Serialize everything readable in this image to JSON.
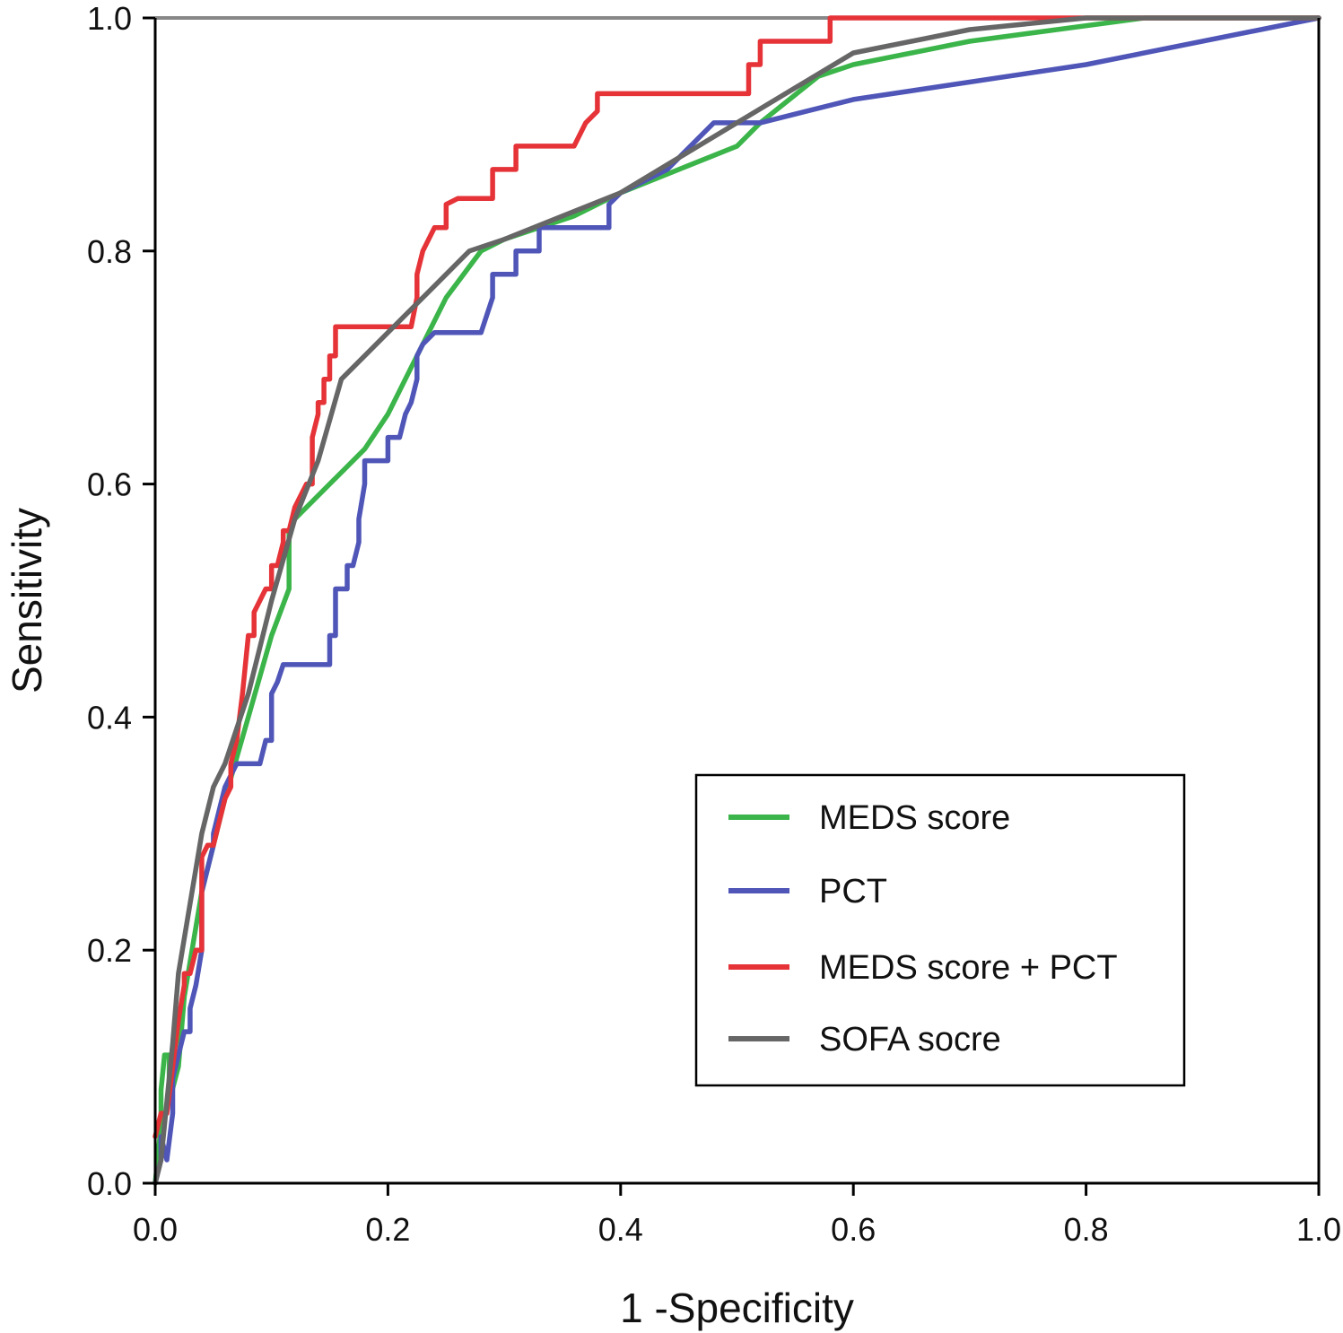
{
  "chart_data": {
    "type": "line",
    "title": "",
    "xlabel": "1 -Specificity",
    "ylabel": "Sensitivity",
    "xlim": [
      0,
      1
    ],
    "ylim": [
      0,
      1
    ],
    "xticks": [
      "0.0",
      "0.2",
      "0.4",
      "0.6",
      "0.8",
      "1.0"
    ],
    "yticks": [
      "0.0",
      "0.2",
      "0.4",
      "0.6",
      "0.8",
      "1.0"
    ],
    "legend_position": "bottom-right",
    "reference_line": {
      "x": [
        0,
        1
      ],
      "y": [
        1,
        1
      ],
      "color": "#888888"
    },
    "series": [
      {
        "name": "MEDS score",
        "color": "#3bb54a",
        "x": [
          0,
          0.005,
          0.005,
          0.008,
          0.012,
          0.012,
          0.02,
          0.025,
          0.04,
          0.06,
          0.08,
          0.1,
          0.115,
          0.115,
          0.12,
          0.15,
          0.18,
          0.2,
          0.22,
          0.25,
          0.28,
          0.3,
          0.33,
          0.36,
          0.4,
          0.45,
          0.5,
          0.52,
          0.57,
          0.6,
          0.7,
          0.85,
          1
        ],
        "y": [
          0,
          0.05,
          0.08,
          0.11,
          0.11,
          0.07,
          0.1,
          0.16,
          0.25,
          0.33,
          0.4,
          0.47,
          0.51,
          0.56,
          0.57,
          0.6,
          0.63,
          0.66,
          0.7,
          0.76,
          0.8,
          0.81,
          0.82,
          0.83,
          0.85,
          0.87,
          0.89,
          0.91,
          0.95,
          0.96,
          0.98,
          1.0,
          1.0
        ]
      },
      {
        "name": "PCT",
        "color": "#4f56b8",
        "x": [
          0,
          0.005,
          0.005,
          0.01,
          0.015,
          0.015,
          0.02,
          0.025,
          0.03,
          0.03,
          0.035,
          0.04,
          0.04,
          0.045,
          0.05,
          0.05,
          0.055,
          0.06,
          0.07,
          0.08,
          0.09,
          0.095,
          0.1,
          0.1,
          0.105,
          0.11,
          0.13,
          0.15,
          0.15,
          0.155,
          0.155,
          0.16,
          0.165,
          0.165,
          0.17,
          0.175,
          0.175,
          0.18,
          0.18,
          0.19,
          0.2,
          0.2,
          0.21,
          0.215,
          0.22,
          0.225,
          0.225,
          0.23,
          0.24,
          0.25,
          0.28,
          0.29,
          0.29,
          0.3,
          0.31,
          0.31,
          0.32,
          0.33,
          0.33,
          0.35,
          0.39,
          0.39,
          0.4,
          0.44,
          0.48,
          0.52,
          0.6,
          0.8,
          1
        ],
        "y": [
          0,
          0.02,
          0.04,
          0.02,
          0.06,
          0.09,
          0.11,
          0.13,
          0.13,
          0.15,
          0.17,
          0.2,
          0.25,
          0.27,
          0.29,
          0.3,
          0.32,
          0.34,
          0.36,
          0.36,
          0.36,
          0.38,
          0.38,
          0.42,
          0.43,
          0.445,
          0.445,
          0.445,
          0.47,
          0.47,
          0.51,
          0.51,
          0.51,
          0.53,
          0.53,
          0.55,
          0.57,
          0.6,
          0.62,
          0.62,
          0.62,
          0.64,
          0.64,
          0.66,
          0.67,
          0.69,
          0.71,
          0.72,
          0.73,
          0.73,
          0.73,
          0.76,
          0.78,
          0.78,
          0.78,
          0.8,
          0.8,
          0.8,
          0.82,
          0.82,
          0.82,
          0.84,
          0.85,
          0.87,
          0.91,
          0.91,
          0.93,
          0.96,
          1.0
        ]
      },
      {
        "name": "MEDS score + PCT",
        "color": "#e53338",
        "x": [
          0,
          0.005,
          0.01,
          0.015,
          0.02,
          0.025,
          0.025,
          0.03,
          0.035,
          0.04,
          0.04,
          0.045,
          0.05,
          0.055,
          0.06,
          0.065,
          0.065,
          0.07,
          0.075,
          0.08,
          0.085,
          0.085,
          0.09,
          0.095,
          0.1,
          0.1,
          0.105,
          0.11,
          0.11,
          0.115,
          0.12,
          0.12,
          0.13,
          0.13,
          0.135,
          0.135,
          0.14,
          0.14,
          0.145,
          0.145,
          0.15,
          0.15,
          0.155,
          0.155,
          0.16,
          0.22,
          0.225,
          0.225,
          0.23,
          0.23,
          0.24,
          0.24,
          0.25,
          0.25,
          0.26,
          0.26,
          0.29,
          0.29,
          0.3,
          0.3,
          0.31,
          0.31,
          0.32,
          0.36,
          0.37,
          0.37,
          0.38,
          0.38,
          0.5,
          0.51,
          0.51,
          0.52,
          0.52,
          0.57,
          0.58,
          0.58,
          0.6,
          1
        ],
        "y": [
          0.04,
          0.06,
          0.06,
          0.1,
          0.14,
          0.17,
          0.18,
          0.18,
          0.2,
          0.2,
          0.28,
          0.29,
          0.29,
          0.31,
          0.33,
          0.34,
          0.36,
          0.38,
          0.42,
          0.47,
          0.47,
          0.49,
          0.5,
          0.51,
          0.51,
          0.53,
          0.53,
          0.55,
          0.56,
          0.56,
          0.58,
          0.58,
          0.6,
          0.6,
          0.6,
          0.64,
          0.66,
          0.67,
          0.67,
          0.69,
          0.69,
          0.71,
          0.71,
          0.735,
          0.735,
          0.735,
          0.76,
          0.78,
          0.8,
          0.8,
          0.82,
          0.82,
          0.82,
          0.84,
          0.845,
          0.845,
          0.845,
          0.87,
          0.87,
          0.87,
          0.87,
          0.89,
          0.89,
          0.89,
          0.91,
          0.91,
          0.92,
          0.935,
          0.935,
          0.935,
          0.96,
          0.96,
          0.98,
          0.98,
          0.98,
          1.0,
          1.0,
          1.0
        ]
      },
      {
        "name": "SOFA socre",
        "color": "#666666",
        "x": [
          0,
          0.005,
          0.015,
          0.02,
          0.03,
          0.04,
          0.05,
          0.06,
          0.08,
          0.1,
          0.12,
          0.14,
          0.16,
          0.2,
          0.24,
          0.27,
          0.3,
          0.35,
          0.4,
          0.45,
          0.5,
          0.55,
          0.6,
          0.7,
          0.8,
          1
        ],
        "y": [
          0,
          0.02,
          0.12,
          0.18,
          0.24,
          0.3,
          0.34,
          0.36,
          0.42,
          0.5,
          0.57,
          0.62,
          0.69,
          0.73,
          0.77,
          0.8,
          0.81,
          0.83,
          0.85,
          0.88,
          0.91,
          0.94,
          0.97,
          0.99,
          1.0,
          1.0
        ]
      }
    ]
  }
}
